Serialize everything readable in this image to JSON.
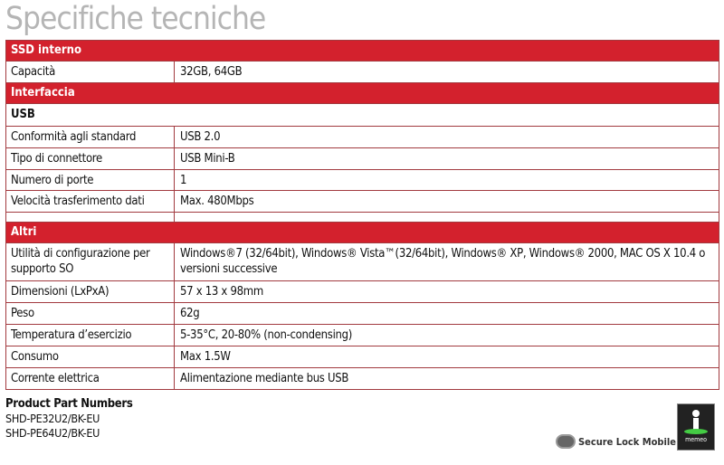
{
  "title": "Specifiche tecniche",
  "sections": [
    {
      "header": "SSD interno",
      "rows": [
        {
          "k": "Capacità",
          "v": "32GB, 64GB"
        }
      ]
    },
    {
      "header": "Interfaccia",
      "sub": "USB",
      "rows": [
        {
          "k": "Conformità agli standard",
          "v": "USB 2.0"
        },
        {
          "k": "Tipo di connettore",
          "v": "USB Mini-B"
        },
        {
          "k": "Numero di porte",
          "v": "1"
        },
        {
          "k": "Velocità trasferimento dati",
          "v": "Max. 480Mbps"
        }
      ]
    },
    {
      "header": "Altri",
      "rows": [
        {
          "k": "Utilità di configurazione per supporto SO",
          "v": "Windows®7 (32/64bit), Windows® Vista™(32/64bit), Windows® XP, Windows® 2000, MAC OS X 10.4 o versioni successive"
        },
        {
          "k": "Dimensioni (LxPxA)",
          "v": "57 x 13 x 98mm"
        },
        {
          "k": "Peso",
          "v": "62g"
        },
        {
          "k": "Temperatura d’esercizio",
          "v": "5-35°C, 20-80% (non-condensing)"
        },
        {
          "k": "Consumo",
          "v": "Max 1.5W"
        },
        {
          "k": "Corrente elettrica",
          "v": "Alimentazione mediante bus USB"
        }
      ]
    }
  ],
  "parts": {
    "heading": "Product Part Numbers",
    "items": [
      "SHD-PE32U2/BK-EU",
      "SHD-PE64U2/BK-EU"
    ]
  },
  "logos": {
    "secure_lock": "Secure Lock Mobile™",
    "memeo": "memeo"
  },
  "colors": {
    "accent": "#d3212d",
    "border": "#a23a3f",
    "title": "#b5b5b5"
  }
}
